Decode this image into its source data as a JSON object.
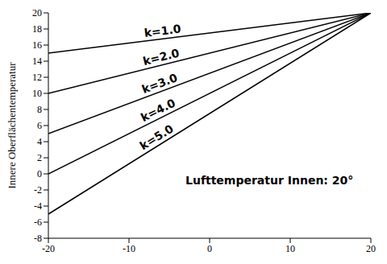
{
  "chart_data": {
    "type": "line",
    "y_label": "Innere Oberflächentemperatur",
    "annotation": "Lufttemperatur Innen: 20°",
    "x": [
      -20,
      20
    ],
    "xlim": [
      -20,
      20
    ],
    "xticks": [
      -20,
      -10,
      0,
      10,
      20
    ],
    "ylim": [
      -8,
      20
    ],
    "yticks": [
      -8,
      -6,
      -4,
      -2,
      0,
      2,
      4,
      6,
      8,
      10,
      12,
      14,
      16,
      18,
      20
    ],
    "grid": false,
    "series": [
      {
        "name": "k=1.0",
        "color": "#000000",
        "values": [
          15,
          20
        ]
      },
      {
        "name": "k=2.0",
        "color": "#000000",
        "values": [
          10,
          20
        ]
      },
      {
        "name": "k=3.0",
        "color": "#000000",
        "values": [
          5,
          20
        ]
      },
      {
        "name": "k=4.0",
        "color": "#000000",
        "values": [
          0,
          20
        ]
      },
      {
        "name": "k=5.0",
        "color": "#000000",
        "values": [
          -5,
          20
        ]
      }
    ]
  }
}
